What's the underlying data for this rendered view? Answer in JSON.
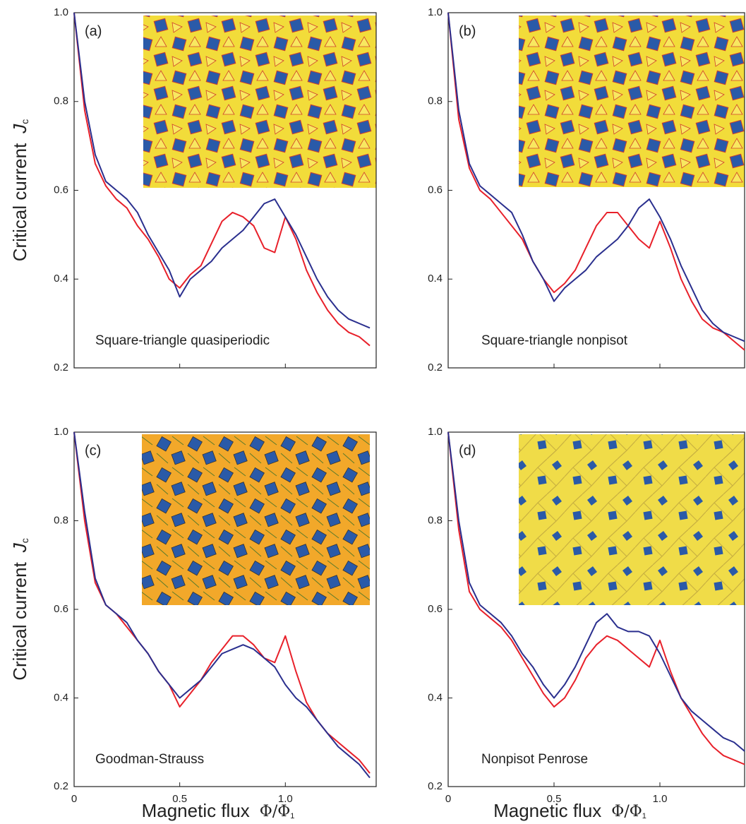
{
  "chart_data": [
    {
      "type": "line",
      "panel_label": "(a)",
      "annotation": "Square-triangle quasiperiodic",
      "ylabel": "Critical current",
      "ylabel_symbol": "J",
      "ylabel_subscript": "c",
      "xlim": [
        0,
        1.43
      ],
      "ylim": [
        0.2,
        1
      ],
      "xticks": [
        0,
        0.5,
        {
          "value": 1,
          "label": "1.0"
        }
      ],
      "xtick_labels": false,
      "yticks": [
        0.2,
        0.4,
        0.6,
        0.8,
        {
          "value": 1,
          "label": "1.0"
        }
      ],
      "x": [
        0,
        0.05,
        0.1,
        0.15,
        0.2,
        0.25,
        0.3,
        0.35,
        0.4,
        0.45,
        0.5,
        0.55,
        0.6,
        0.65,
        0.7,
        0.75,
        0.8,
        0.85,
        0.9,
        0.95,
        1,
        1.05,
        1.1,
        1.15,
        1.2,
        1.25,
        1.3,
        1.35,
        1.4
      ],
      "series": [
        {
          "color": "#e8202a",
          "values": [
            1,
            0.78,
            0.66,
            0.61,
            0.58,
            0.56,
            0.52,
            0.49,
            0.45,
            0.4,
            0.38,
            0.41,
            0.43,
            0.48,
            0.53,
            0.55,
            0.54,
            0.52,
            0.47,
            0.46,
            0.54,
            0.49,
            0.42,
            0.37,
            0.33,
            0.3,
            0.28,
            0.27,
            0.25
          ]
        },
        {
          "color": "#2a2f8e",
          "values": [
            1,
            0.8,
            0.68,
            0.62,
            0.6,
            0.58,
            0.55,
            0.5,
            0.46,
            0.42,
            0.36,
            0.4,
            0.42,
            0.44,
            0.47,
            0.49,
            0.51,
            0.54,
            0.57,
            0.58,
            0.54,
            0.5,
            0.45,
            0.4,
            0.36,
            0.33,
            0.31,
            0.3,
            0.29
          ]
        }
      ]
    },
    {
      "type": "line",
      "panel_label": "(b)",
      "annotation": "Square-triangle nonpisot",
      "xlim": [
        0,
        1.4
      ],
      "ylim": [
        0.2,
        1
      ],
      "xticks": [
        0,
        0.5,
        {
          "value": 1,
          "label": "1.0"
        }
      ],
      "xtick_labels": false,
      "yticks": [
        0.2,
        0.4,
        0.6,
        0.8,
        {
          "value": 1,
          "label": "1.0"
        }
      ],
      "x": [
        0,
        0.05,
        0.1,
        0.15,
        0.2,
        0.25,
        0.3,
        0.35,
        0.4,
        0.45,
        0.5,
        0.55,
        0.6,
        0.65,
        0.7,
        0.75,
        0.8,
        0.85,
        0.9,
        0.95,
        1,
        1.05,
        1.1,
        1.15,
        1.2,
        1.25,
        1.3,
        1.35,
        1.4
      ],
      "series": [
        {
          "color": "#e8202a",
          "values": [
            1,
            0.76,
            0.65,
            0.6,
            0.58,
            0.55,
            0.52,
            0.49,
            0.44,
            0.4,
            0.37,
            0.39,
            0.42,
            0.47,
            0.52,
            0.55,
            0.55,
            0.52,
            0.49,
            0.47,
            0.53,
            0.47,
            0.4,
            0.35,
            0.31,
            0.29,
            0.28,
            0.26,
            0.24
          ]
        },
        {
          "color": "#2a2f8e",
          "values": [
            1,
            0.78,
            0.66,
            0.61,
            0.59,
            0.57,
            0.55,
            0.5,
            0.44,
            0.4,
            0.35,
            0.38,
            0.4,
            0.42,
            0.45,
            0.47,
            0.49,
            0.52,
            0.56,
            0.58,
            0.54,
            0.49,
            0.43,
            0.38,
            0.33,
            0.3,
            0.28,
            0.27,
            0.26
          ]
        }
      ]
    },
    {
      "type": "line",
      "panel_label": "(c)",
      "annotation": "Goodman-Strauss",
      "ylabel": "Critical current",
      "ylabel_symbol": "J",
      "ylabel_subscript": "c",
      "xlabel": "Magnetic flux",
      "xlabel_symbol": "Φ/Φ",
      "xlabel_subscript": "1",
      "xlim": [
        0,
        1.43
      ],
      "ylim": [
        0.2,
        1
      ],
      "xticks": [
        0,
        0.5,
        {
          "value": 1,
          "label": "1.0"
        }
      ],
      "xtick_labels": true,
      "yticks": [
        0.2,
        0.4,
        0.6,
        0.8,
        {
          "value": 1,
          "label": "1.0"
        }
      ],
      "x": [
        0,
        0.05,
        0.1,
        0.15,
        0.2,
        0.25,
        0.3,
        0.35,
        0.4,
        0.45,
        0.5,
        0.55,
        0.6,
        0.65,
        0.7,
        0.75,
        0.8,
        0.85,
        0.9,
        0.95,
        1,
        1.05,
        1.1,
        1.15,
        1.2,
        1.25,
        1.3,
        1.35,
        1.4
      ],
      "series": [
        {
          "color": "#e8202a",
          "values": [
            1,
            0.8,
            0.66,
            0.61,
            0.59,
            0.56,
            0.53,
            0.5,
            0.46,
            0.43,
            0.38,
            0.41,
            0.44,
            0.48,
            0.51,
            0.54,
            0.54,
            0.52,
            0.49,
            0.48,
            0.54,
            0.46,
            0.39,
            0.35,
            0.32,
            0.3,
            0.28,
            0.26,
            0.23
          ]
        },
        {
          "color": "#2a2f8e",
          "values": [
            1,
            0.82,
            0.67,
            0.61,
            0.59,
            0.57,
            0.53,
            0.5,
            0.46,
            0.43,
            0.4,
            0.42,
            0.44,
            0.47,
            0.5,
            0.51,
            0.52,
            0.51,
            0.49,
            0.47,
            0.43,
            0.4,
            0.38,
            0.35,
            0.32,
            0.29,
            0.27,
            0.25,
            0.22
          ]
        }
      ]
    },
    {
      "type": "line",
      "panel_label": "(d)",
      "annotation": "Nonpisot Penrose",
      "xlabel": "Magnetic flux",
      "xlabel_symbol": "Φ/Φ",
      "xlabel_subscript": "1",
      "xlim": [
        0,
        1.4
      ],
      "ylim": [
        0.2,
        1
      ],
      "xticks": [
        0,
        0.5,
        {
          "value": 1,
          "label": "1.0"
        }
      ],
      "xtick_labels": true,
      "yticks": [
        0.2,
        0.4,
        0.6,
        0.8,
        {
          "value": 1,
          "label": "1.0"
        }
      ],
      "x": [
        0,
        0.05,
        0.1,
        0.15,
        0.2,
        0.25,
        0.3,
        0.35,
        0.4,
        0.45,
        0.5,
        0.55,
        0.6,
        0.65,
        0.7,
        0.75,
        0.8,
        0.85,
        0.9,
        0.95,
        1,
        1.05,
        1.1,
        1.15,
        1.2,
        1.25,
        1.3,
        1.35,
        1.4
      ],
      "series": [
        {
          "color": "#e8202a",
          "values": [
            1,
            0.78,
            0.64,
            0.6,
            0.58,
            0.56,
            0.53,
            0.49,
            0.45,
            0.41,
            0.38,
            0.4,
            0.44,
            0.49,
            0.52,
            0.54,
            0.53,
            0.51,
            0.49,
            0.47,
            0.53,
            0.46,
            0.4,
            0.36,
            0.32,
            0.29,
            0.27,
            0.26,
            0.25
          ]
        },
        {
          "color": "#2a2f8e",
          "values": [
            1,
            0.8,
            0.66,
            0.61,
            0.59,
            0.57,
            0.54,
            0.5,
            0.47,
            0.43,
            0.4,
            0.43,
            0.47,
            0.52,
            0.57,
            0.59,
            0.56,
            0.55,
            0.55,
            0.54,
            0.5,
            0.45,
            0.4,
            0.37,
            0.35,
            0.33,
            0.31,
            0.3,
            0.28
          ]
        }
      ]
    }
  ]
}
